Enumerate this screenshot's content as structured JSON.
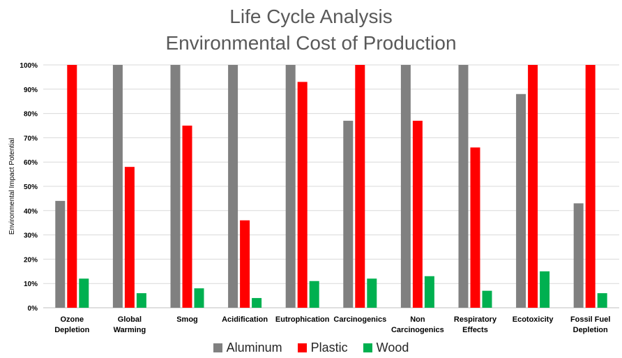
{
  "chart_data": {
    "type": "bar",
    "title": "Life Cycle Analysis",
    "subtitle": "Environmental Cost of Production",
    "xlabel": "",
    "ylabel": "Environmental Impact Potential",
    "ylim": [
      0,
      100
    ],
    "yticks": [
      "0%",
      "10%",
      "20%",
      "30%",
      "40%",
      "50%",
      "60%",
      "70%",
      "80%",
      "90%",
      "100%"
    ],
    "grid": true,
    "legend_position": "bottom",
    "categories": [
      [
        "Ozone",
        "Depletion"
      ],
      [
        "Global",
        "Warming"
      ],
      [
        "Smog"
      ],
      [
        "Acidification"
      ],
      [
        "Eutrophication"
      ],
      [
        "Carcinogenics"
      ],
      [
        "Non",
        "Carcinogenics"
      ],
      [
        "Respiratory",
        "Effects"
      ],
      [
        "Ecotoxicity"
      ],
      [
        "Fossil Fuel",
        "Depletion"
      ]
    ],
    "series": [
      {
        "name": "Aluminum",
        "color": "#808080",
        "values": [
          44,
          100,
          100,
          100,
          100,
          77,
          100,
          100,
          88,
          43
        ]
      },
      {
        "name": "Plastic",
        "color": "#ff0000",
        "values": [
          100,
          58,
          75,
          36,
          93,
          100,
          77,
          66,
          100,
          100
        ]
      },
      {
        "name": "Wood",
        "color": "#00b050",
        "values": [
          12,
          6,
          8,
          4,
          11,
          12,
          13,
          7,
          15,
          6
        ]
      }
    ]
  }
}
